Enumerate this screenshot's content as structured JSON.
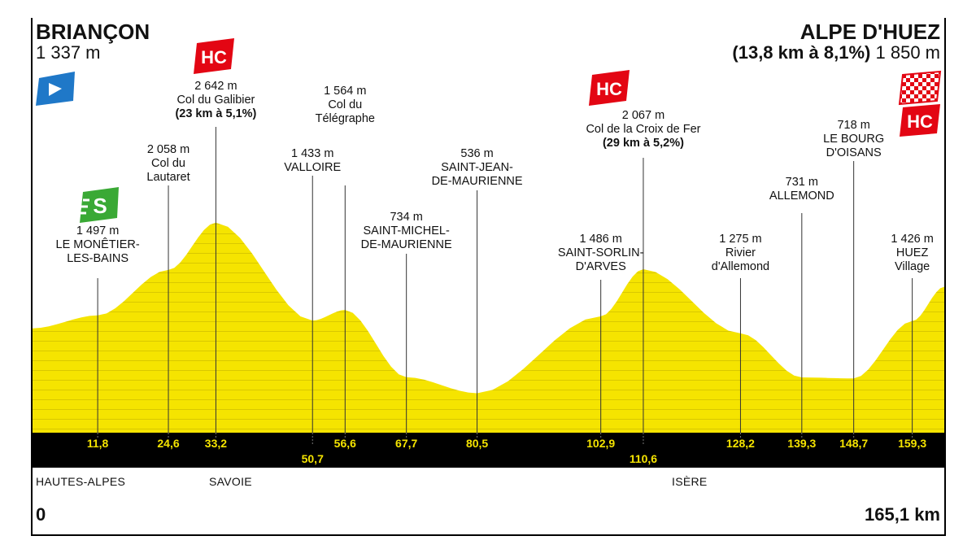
{
  "start": {
    "name": "BRIANÇON",
    "altitude": "1 337 m",
    "km": "0"
  },
  "finish": {
    "name": "ALPE D'HUEZ",
    "climb": "(13,8 km à 8,1%)",
    "altitude": "1 850 m",
    "km": "165,1 km"
  },
  "regions": [
    "HAUTES-ALPES",
    "SAVOIE",
    "ISÈRE"
  ],
  "colors": {
    "profile": "#f5e400",
    "profile_stripes": "#d9c800",
    "band": "#000000",
    "km_text": "#f5e400",
    "hc": "#e30613",
    "sprint": "#3aa935",
    "start_flag": "#1f78c8"
  },
  "icons": {
    "start": {
      "name": "start-flag-icon",
      "label": ""
    },
    "sprint": {
      "name": "intermediate-sprint-icon",
      "label": "S"
    },
    "hc": {
      "name": "hc-climb-icon",
      "label": "HC"
    },
    "finish": {
      "name": "finish-checkered-flag-icon",
      "label": ""
    }
  },
  "points": [
    {
      "id": "monetier",
      "km": 11.8,
      "label_km": "11,8",
      "lines": [
        "1 497 m",
        "LE MONÊTIER-",
        "LES-BAINS"
      ]
    },
    {
      "id": "lautaret",
      "km": 24.6,
      "label_km": "24,6",
      "lines": [
        "2 058 m",
        "Col du",
        "Lautaret"
      ]
    },
    {
      "id": "galibier",
      "km": 33.2,
      "label_km": "33,2",
      "lines": [
        "2 642 m",
        "Col du Galibier"
      ],
      "bold": "(23 km à 5,1%)"
    },
    {
      "id": "valloire",
      "km": 50.7,
      "label_km": "50,7",
      "lines": [
        "1 433 m",
        "VALLOIRE"
      ]
    },
    {
      "id": "telegraphe",
      "km": 56.6,
      "label_km": "56,6",
      "lines": [
        "1 564 m",
        "Col du",
        "Télégraphe"
      ]
    },
    {
      "id": "saint-michel",
      "km": 67.7,
      "label_km": "67,7",
      "lines": [
        "734 m",
        "SAINT-MICHEL-",
        "DE-MAURIENNE"
      ]
    },
    {
      "id": "saint-jean",
      "km": 80.5,
      "label_km": "80,5",
      "lines": [
        "536 m",
        "SAINT-JEAN-",
        "DE-MAURIENNE"
      ]
    },
    {
      "id": "saint-sorlin",
      "km": 102.9,
      "label_km": "102,9",
      "lines": [
        "1 486 m",
        "SAINT-SORLIN-",
        "D'ARVES"
      ]
    },
    {
      "id": "croix-de-fer",
      "km": 110.6,
      "label_km": "110,6",
      "lines": [
        "2 067 m",
        "Col de la Croix de Fer"
      ],
      "bold": "(29 km à 5,2%)"
    },
    {
      "id": "rivier",
      "km": 128.2,
      "label_km": "128,2",
      "lines": [
        "1 275 m",
        "Rivier",
        "d'Allemond"
      ]
    },
    {
      "id": "allemond",
      "km": 139.3,
      "label_km": "139,3",
      "lines": [
        "731 m",
        "ALLEMOND"
      ]
    },
    {
      "id": "bourg-oisans",
      "km": 148.7,
      "label_km": "148,7",
      "lines": [
        "718 m",
        "LE BOURG",
        "D'OISANS"
      ]
    },
    {
      "id": "huez",
      "km": 159.3,
      "label_km": "159,3",
      "lines": [
        "1 426 m",
        "HUEZ",
        "Village"
      ]
    }
  ],
  "chart_data": {
    "type": "area",
    "x": [
      0,
      11.8,
      24.6,
      33.2,
      50.7,
      56.6,
      67.7,
      80.5,
      102.9,
      110.6,
      128.2,
      139.3,
      148.7,
      159.3,
      165.1
    ],
    "series": [
      {
        "values": [
          1337,
          1497,
          2058,
          2642,
          1433,
          1564,
          734,
          536,
          1486,
          2067,
          1275,
          731,
          718,
          1426,
          1850
        ]
      }
    ],
    "xlim": [
      0,
      165.1
    ]
  }
}
